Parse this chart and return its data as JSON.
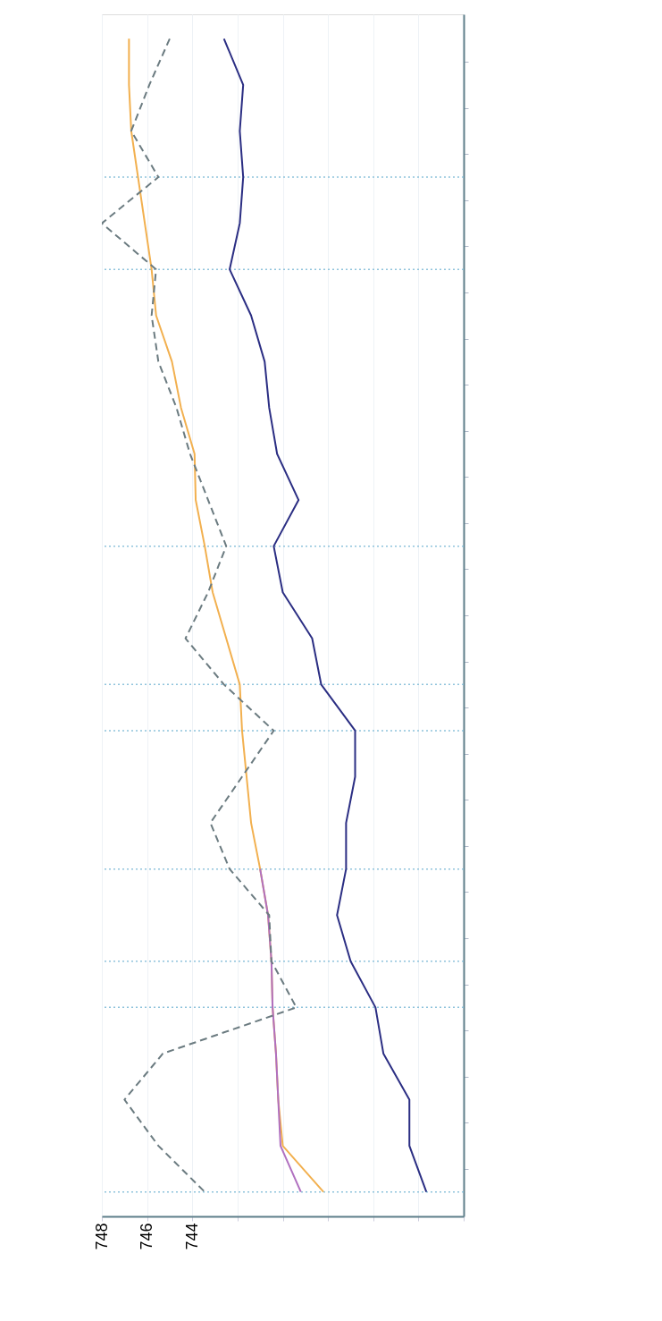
{
  "chart_data": {
    "type": "line",
    "orientation": "horizontal",
    "categories": [
      null,
      null,
      null,
      null,
      null,
      null,
      null,
      null,
      null,
      null,
      null,
      null,
      null,
      null,
      null,
      null,
      null,
      null,
      null,
      null,
      null,
      null,
      null,
      null,
      null,
      null
    ],
    "series": [
      {
        "color": "#2b2e83",
        "line_style": "solid",
        "values": [
          742.6,
          741.75,
          741.9,
          741.75,
          741.9,
          742.35,
          741.4,
          740.8,
          740.6,
          740.25,
          739.3,
          740.4,
          740.0,
          738.7,
          738.3,
          736.8,
          736.8,
          737.2,
          737.2,
          737.6,
          737.0,
          735.9,
          735.55,
          734.4,
          734.4,
          733.65
        ]
      },
      {
        "color": "#f2b04f",
        "line_style": "solid",
        "values": [
          746.8,
          746.8,
          746.7,
          746.4,
          746.1,
          745.8,
          745.6,
          744.9,
          744.5,
          743.9,
          743.85,
          743.45,
          743.1,
          742.5,
          741.9,
          741.8,
          741.6,
          741.4,
          741.0,
          740.65,
          740.5,
          740.45,
          740.3,
          740.2,
          740.0,
          738.2
        ]
      },
      {
        "color": "#b070c0",
        "line_style": "solid",
        "values": [
          null,
          null,
          null,
          null,
          null,
          null,
          null,
          null,
          null,
          null,
          null,
          null,
          null,
          null,
          null,
          null,
          null,
          null,
          741.0,
          740.65,
          740.5,
          740.45,
          740.3,
          740.2,
          740.1,
          739.2
        ]
      },
      {
        "color": "#6b7b80",
        "line_style": "dashed",
        "values": [
          745.0,
          745.9,
          746.7,
          745.5,
          748,
          745.6,
          745.8,
          745.5,
          744.7,
          744.1,
          743.3,
          742.5,
          743.3,
          744.3,
          742.6,
          740.4,
          741.8,
          743.2,
          742.35,
          740.6,
          740.5,
          739.4,
          745.3,
          747.0,
          745.5,
          743.45
        ]
      }
    ],
    "xlim": [
      748,
      732
    ],
    "xticks": [
      748,
      746,
      744,
      {
        "value": 742,
        "label": null
      },
      {
        "value": 740,
        "label": null
      },
      {
        "value": 738,
        "label": null
      },
      {
        "value": 736,
        "label": null
      },
      {
        "value": 734,
        "label": null
      },
      {
        "value": 732,
        "label": null
      }
    ],
    "tick_labels": "x",
    "grid": true,
    "legend": false
  }
}
